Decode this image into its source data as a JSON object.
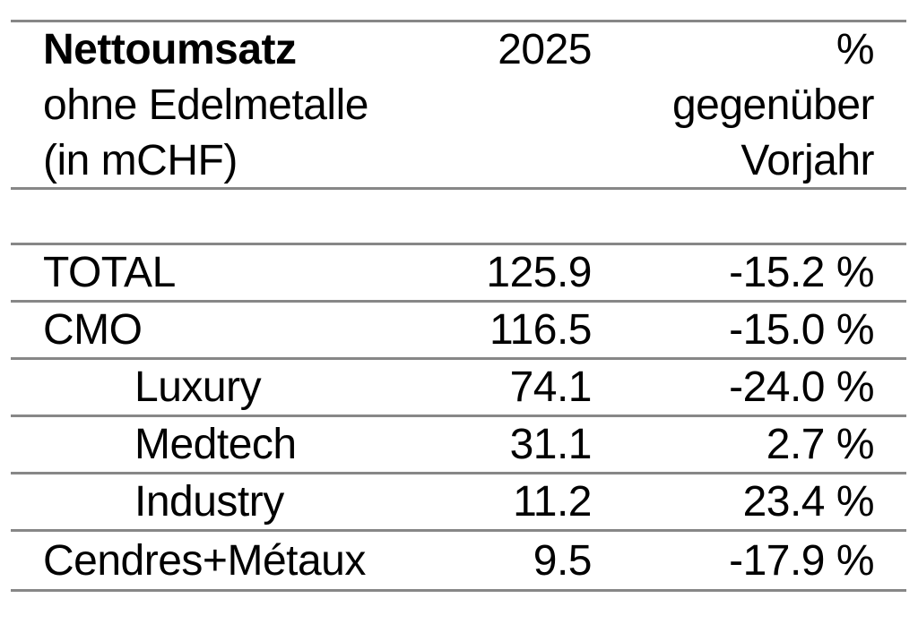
{
  "table": {
    "header": {
      "title_line1": "Nettoumsatz",
      "title_line2": "ohne Edelmetalle",
      "title_line3": "(in mCHF)",
      "year": "2025",
      "change_line1": "%",
      "change_line2": "gegenüber",
      "change_line3": "Vorjahr"
    },
    "rows": [
      {
        "label": "TOTAL",
        "value": "125.9",
        "change": "-15.2 %"
      },
      {
        "label": "CMO",
        "value": "116.5",
        "change": "-15.0 %"
      },
      {
        "label": "Luxury",
        "value": "74.1",
        "change": "-24.0 %"
      },
      {
        "label": "Medtech",
        "value": "31.1",
        "change": "2.7 %"
      },
      {
        "label": "Industry",
        "value": "11.2",
        "change": "23.4 %"
      },
      {
        "label": "Cendres+Métaux",
        "value": "9.5",
        "change": "-17.9 %"
      }
    ],
    "colors": {
      "line": "#878787",
      "text": "#000000",
      "background": "#ffffff"
    }
  },
  "chart_data": {
    "type": "table",
    "title": "Nettoumsatz ohne Edelmetalle (in mCHF)",
    "columns": [
      "Nettoumsatz ohne Edelmetalle (in mCHF)",
      "2025",
      "% gegenüber Vorjahr"
    ],
    "rows": [
      [
        "TOTAL",
        125.9,
        -15.2
      ],
      [
        "CMO",
        116.5,
        -15.0
      ],
      [
        "Luxury",
        74.1,
        -24.0
      ],
      [
        "Medtech",
        31.1,
        2.7
      ],
      [
        "Industry",
        11.2,
        23.4
      ],
      [
        "Cendres+Métaux",
        9.5,
        -17.9
      ]
    ],
    "value_unit": "mCHF",
    "change_unit": "% gegenüber Vorjahr",
    "sub_rows_of_cmo": [
      "Luxury",
      "Medtech",
      "Industry"
    ]
  }
}
